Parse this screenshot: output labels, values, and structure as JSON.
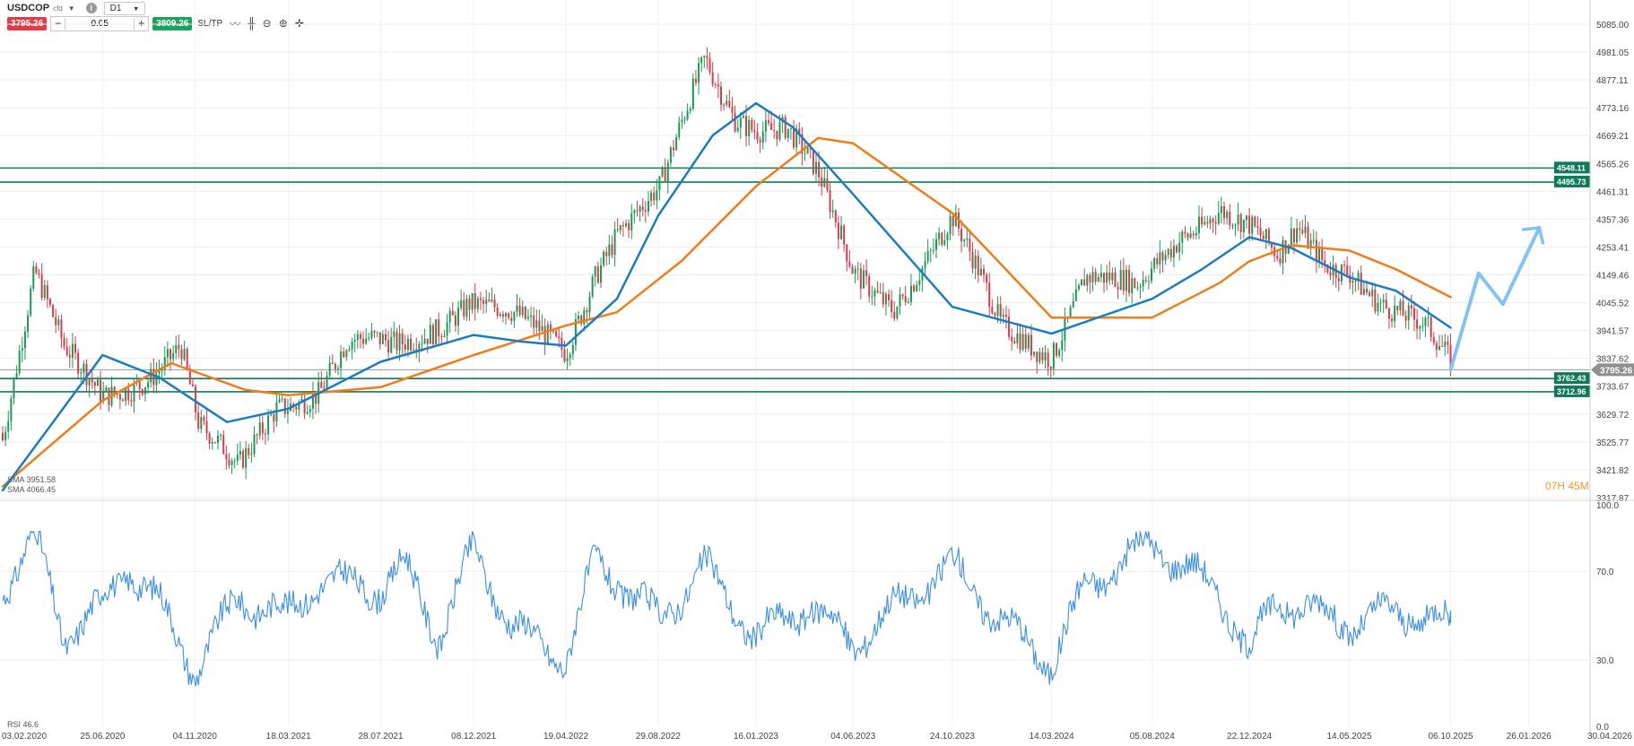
{
  "toolbar": {
    "symbol": "USDCOP",
    "symbol_suffix": "cfd",
    "timeframe": "D1",
    "sell_price": "3795.26",
    "buy_price": "3809.26",
    "volume": "0.05",
    "minus_label": "−",
    "plus_label": "+",
    "sltp_label": "SL/TP",
    "icons": [
      "line-chart-icon",
      "candles-icon",
      "zoom-out-icon",
      "zoom-in-icon",
      "crosshair-icon"
    ]
  },
  "indicators": {
    "sma1_label": "SMA 3951.58",
    "sma2_label": "SMA 4066.45",
    "rsi_label": "RSI 46.6"
  },
  "timer": {
    "value": "07H 45M"
  },
  "colors": {
    "candle_up": "#1a9a55",
    "candle_down": "#d63c4a",
    "sma_fast": "#1b7dc0",
    "sma_slow": "#f07c1a",
    "level": "#0e7a5a",
    "rsi": "#3b8ee8",
    "projection": "#82c3f5"
  },
  "chart_data": [
    {
      "type": "candlestick",
      "symbol": "USDCOP",
      "timeframe": "D1",
      "y_ticks": [
        "5085.00",
        "4981.05",
        "4877.11",
        "4773.16",
        "4669.21",
        "4565.26",
        "4461.31",
        "4357.36",
        "4253.41",
        "4149.46",
        "4045.52",
        "3941.57",
        "3837.62",
        "3733.67",
        "3629.72",
        "3525.77",
        "3421.82",
        "3317.87"
      ],
      "ylim": [
        3317.87,
        5135
      ],
      "x_ticks": [
        "03.02.2020",
        "25.06.2020",
        "04.11.2020",
        "18.03.2021",
        "28.07.2021",
        "08.12.2021",
        "19.04.2022",
        "29.08.2022",
        "16.01.2023",
        "04.06.2023",
        "24.10.2023",
        "14.03.2024",
        "05.08.2024",
        "22.12.2024",
        "14.05.2025",
        "06.10.2025",
        "26.01.2026",
        "30.04.2026"
      ],
      "price_path": {
        "x": [
          "2020-02-03",
          "2020-03-20",
          "2020-05-01",
          "2020-06-25",
          "2020-09-01",
          "2020-10-15",
          "2020-11-10",
          "2021-01-05",
          "2021-03-01",
          "2021-05-01",
          "2021-06-10",
          "2021-08-20",
          "2021-10-20",
          "2021-12-01",
          "2022-02-01",
          "2022-04-19",
          "2022-06-01",
          "2022-07-01",
          "2022-09-01",
          "2022-11-04",
          "2022-12-15",
          "2023-01-16",
          "2023-03-01",
          "2023-04-15",
          "2023-06-04",
          "2023-08-01",
          "2023-10-24",
          "2024-01-01",
          "2024-03-14",
          "2024-05-01",
          "2024-07-15",
          "2024-09-15",
          "2024-11-10",
          "2024-12-22",
          "2025-02-01",
          "2025-03-01",
          "2025-04-10",
          "2025-05-14",
          "2025-07-01",
          "2025-09-01",
          "2025-10-06"
        ],
        "close": [
          3560,
          4150,
          3850,
          3700,
          3790,
          3880,
          3560,
          3420,
          3680,
          3720,
          3880,
          3880,
          3980,
          4060,
          3980,
          3870,
          4180,
          4320,
          4450,
          4950,
          4760,
          4720,
          4700,
          4500,
          4150,
          4050,
          4350,
          3950,
          3870,
          4150,
          4080,
          4300,
          4420,
          4330,
          4190,
          4300,
          4190,
          4190,
          4050,
          3930,
          3800
        ]
      },
      "levels": [
        4548.11,
        4495.73,
        3795.26,
        3762.43,
        3712.96
      ],
      "level_labels": [
        "4548.11",
        "4495.73",
        "3795.26",
        "3762.43",
        "3712.96"
      ],
      "current_price": 3795.26,
      "sma_fast": {
        "label": "SMA 3951.58",
        "x": [
          "2020-02-03",
          "2020-06-25",
          "2020-09-15",
          "2020-12-20",
          "2021-03-18",
          "2021-07-28",
          "2021-12-08",
          "2022-02-15",
          "2022-04-19",
          "2022-07-01",
          "2022-08-29",
          "2022-11-15",
          "2023-01-16",
          "2023-03-10",
          "2023-06-04",
          "2023-10-24",
          "2024-03-14",
          "2024-08-05",
          "2024-10-15",
          "2024-12-22",
          "2025-02-20",
          "2025-05-14",
          "2025-07-20",
          "2025-10-06"
        ],
        "y": [
          3345,
          3850,
          3765,
          3600,
          3650,
          3825,
          3925,
          3900,
          3885,
          4060,
          4370,
          4670,
          4790,
          4700,
          4450,
          4030,
          3930,
          4060,
          4170,
          4290,
          4250,
          4140,
          4090,
          3952
        ]
      },
      "sma_slow": {
        "label": "SMA 4066.45",
        "x": [
          "2020-02-03",
          "2020-06-25",
          "2020-10-01",
          "2021-01-15",
          "2021-03-18",
          "2021-07-28",
          "2021-12-08",
          "2022-04-19",
          "2022-07-01",
          "2022-10-01",
          "2023-01-16",
          "2023-04-15",
          "2023-06-04",
          "2023-10-24",
          "2024-03-14",
          "2024-08-05",
          "2024-11-10",
          "2024-12-22",
          "2025-02-20",
          "2025-05-14",
          "2025-07-20",
          "2025-10-06"
        ],
        "y": [
          3360,
          3680,
          3820,
          3720,
          3700,
          3730,
          3850,
          3960,
          4010,
          4200,
          4480,
          4660,
          4640,
          4380,
          3990,
          3990,
          4120,
          4200,
          4260,
          4240,
          4170,
          4066
        ]
      },
      "projection": {
        "x": [
          "2025-10-06",
          "2025-11-15",
          "2025-12-20",
          "2026-02-10"
        ],
        "y": [
          3795,
          4155,
          4040,
          4325
        ]
      }
    },
    {
      "type": "line",
      "name": "RSI",
      "label": "RSI 46.6",
      "ylim": [
        0,
        100
      ],
      "y_ticks": [
        "100.0",
        "70.0",
        "30.0",
        "0.0"
      ],
      "last_value": 46.6,
      "x": [
        "2020-02-03",
        "2020-03-20",
        "2020-05-01",
        "2020-06-25",
        "2020-08-01",
        "2020-09-15",
        "2020-11-04",
        "2021-01-05",
        "2021-03-18",
        "2021-05-01",
        "2021-07-28",
        "2021-09-01",
        "2021-10-20",
        "2021-12-08",
        "2022-02-01",
        "2022-04-19",
        "2022-06-01",
        "2022-08-29",
        "2022-11-04",
        "2023-01-16",
        "2023-04-01",
        "2023-06-04",
        "2023-08-01",
        "2023-10-24",
        "2024-01-01",
        "2024-03-14",
        "2024-05-01",
        "2024-08-05",
        "2024-11-10",
        "2024-12-22",
        "2025-02-01",
        "2025-05-14",
        "2025-07-20",
        "2025-10-06"
      ],
      "y": [
        62,
        86,
        40,
        55,
        72,
        55,
        25,
        58,
        50,
        66,
        62,
        72,
        40,
        80,
        45,
        30,
        75,
        48,
        72,
        40,
        55,
        37,
        53,
        73,
        48,
        28,
        63,
        83,
        60,
        33,
        58,
        46,
        52,
        46.6
      ]
    }
  ]
}
